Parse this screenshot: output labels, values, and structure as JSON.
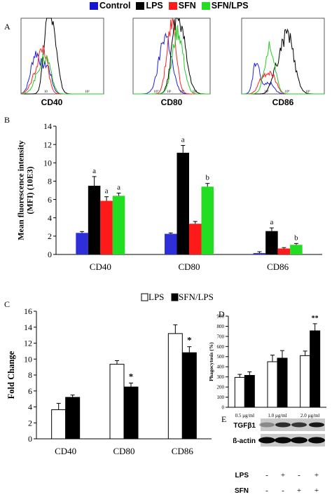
{
  "legend_top": [
    {
      "label": "Control",
      "color": "#1515d6"
    },
    {
      "label": "LPS",
      "color": "#000000"
    },
    {
      "label": "SFN",
      "color": "#ff1a1a"
    },
    {
      "label": "SFN/LPS",
      "color": "#22dd22"
    }
  ],
  "panel_letters": {
    "a": "A",
    "b": "B",
    "c": "C",
    "d": "D",
    "e": "E"
  },
  "histogram_labels": [
    "CD40",
    "CD80",
    "CD86"
  ],
  "histogram_axis": {
    "cd40": [
      "10",
      "10²"
    ],
    "cd80": [
      "10⁰",
      "10¹",
      "10⁴",
      "10⁵"
    ],
    "cd86": [
      "10³",
      "10⁴",
      "10⁵"
    ]
  },
  "chart_data": [
    {
      "id": "B",
      "type": "bar",
      "ylabel": "Mean fluorescence intensity (MFI) (10E3)",
      "ylim": [
        0,
        14
      ],
      "yticks": [
        0,
        2,
        4,
        6,
        8,
        10,
        12,
        14
      ],
      "categories": [
        "CD40",
        "CD80",
        "CD86"
      ],
      "series": [
        {
          "name": "Control",
          "color": "#2f2fd9",
          "values": [
            2.35,
            2.25,
            0.15
          ],
          "errors": [
            0.15,
            0.1,
            0.15
          ]
        },
        {
          "name": "LPS",
          "color": "#000000",
          "values": [
            7.5,
            11.1,
            2.55
          ],
          "errors": [
            1.0,
            0.8,
            0.35
          ]
        },
        {
          "name": "SFN",
          "color": "#ff1a1a",
          "values": [
            5.85,
            3.35,
            0.65
          ],
          "errors": [
            0.45,
            0.25,
            0.1
          ]
        },
        {
          "name": "SFN/LPS",
          "color": "#22dd22",
          "values": [
            6.4,
            7.4,
            1.05
          ],
          "errors": [
            0.3,
            0.35,
            0.15
          ]
        }
      ],
      "annotations": [
        {
          "category": 0,
          "series": 1,
          "text": "a"
        },
        {
          "category": 0,
          "series": 2,
          "text": "a"
        },
        {
          "category": 0,
          "series": 3,
          "text": "a"
        },
        {
          "category": 1,
          "series": 1,
          "text": "a"
        },
        {
          "category": 1,
          "series": 3,
          "text": "b"
        },
        {
          "category": 2,
          "series": 1,
          "text": "a"
        },
        {
          "category": 2,
          "series": 3,
          "text": "b"
        }
      ]
    },
    {
      "id": "C",
      "type": "bar",
      "ylabel": "Fold Change",
      "ylim": [
        0,
        16
      ],
      "yticks": [
        0,
        2,
        4,
        6,
        8,
        10,
        12,
        14,
        16
      ],
      "categories": [
        "CD40",
        "CD80",
        "CD86"
      ],
      "series": [
        {
          "name": "LPS",
          "fill": "#ffffff",
          "values": [
            3.65,
            9.35,
            13.2
          ],
          "errors": [
            0.8,
            0.45,
            1.1
          ]
        },
        {
          "name": "SFN/LPS",
          "fill": "#000000",
          "values": [
            5.2,
            6.5,
            10.8
          ],
          "errors": [
            0.3,
            0.5,
            0.75
          ]
        }
      ],
      "annotations": [
        {
          "category": 1,
          "series": 1,
          "text": "*"
        },
        {
          "category": 2,
          "series": 1,
          "text": "*"
        }
      ]
    },
    {
      "id": "D",
      "type": "bar",
      "ylabel": "Phagocytosis (%)",
      "ylim": [
        0,
        900
      ],
      "yticks": [
        0,
        100,
        200,
        300,
        400,
        500,
        600,
        700,
        800,
        900
      ],
      "categories": [
        "0.5 µg/ml",
        "1.0 µg/ml",
        "2.0 µg/ml"
      ],
      "series": [
        {
          "name": "LPS",
          "fill": "#ffffff",
          "values": [
            295,
            450,
            510
          ],
          "errors": [
            30,
            65,
            45
          ]
        },
        {
          "name": "SFN/LPS",
          "fill": "#000000",
          "values": [
            315,
            485,
            755
          ],
          "errors": [
            35,
            75,
            70
          ]
        }
      ],
      "annotations": [
        {
          "category": 2,
          "series": 1,
          "text": "**"
        }
      ]
    }
  ],
  "blot": {
    "rows": [
      "TGFβ1",
      "ß-actin"
    ],
    "conditions": [
      {
        "label": "LPS",
        "values": [
          "-",
          "+",
          "-",
          "+"
        ]
      },
      {
        "label": "SFN",
        "values": [
          "-",
          "-",
          "+",
          "+"
        ]
      }
    ]
  }
}
